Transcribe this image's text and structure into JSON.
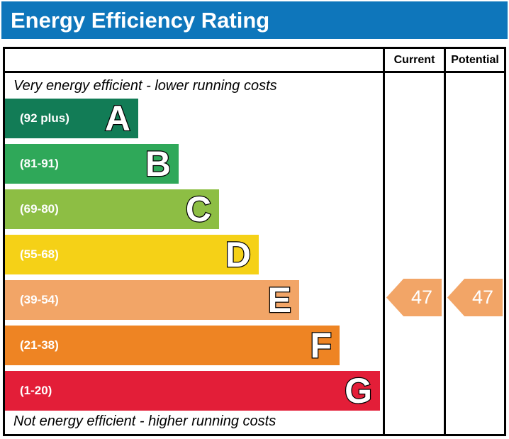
{
  "title": "Energy Efficiency Rating",
  "title_bar_color": "#0e76bb",
  "columns": {
    "current": "Current",
    "potential": "Potential"
  },
  "notes": {
    "top": "Very energy efficient - lower running costs",
    "bottom": "Not energy efficient - higher running costs"
  },
  "bands": [
    {
      "letter": "A",
      "range_label": "(92 plus)",
      "color": "#127c56"
    },
    {
      "letter": "B",
      "range_label": "(81-91)",
      "color": "#2fa859"
    },
    {
      "letter": "C",
      "range_label": "(69-80)",
      "color": "#8dbe44"
    },
    {
      "letter": "D",
      "range_label": "(55-68)",
      "color": "#f5d117"
    },
    {
      "letter": "E",
      "range_label": "(39-54)",
      "color": "#f2a567"
    },
    {
      "letter": "F",
      "range_label": "(21-38)",
      "color": "#ee8423"
    },
    {
      "letter": "G",
      "range_label": "(1-20)",
      "color": "#e31e38"
    }
  ],
  "ratings": {
    "current": {
      "value": "47",
      "band": "E",
      "color": "#f2a567"
    },
    "potential": {
      "value": "47",
      "band": "E",
      "color": "#f2a567"
    }
  },
  "chart_data": {
    "type": "bar",
    "title": "Energy Efficiency Rating",
    "categories": [
      "A",
      "B",
      "C",
      "D",
      "E",
      "F",
      "G"
    ],
    "band_ranges": [
      "92 plus",
      "81-91",
      "69-80",
      "55-68",
      "39-54",
      "21-38",
      "1-20"
    ],
    "band_colors": [
      "#127c56",
      "#2fa859",
      "#8dbe44",
      "#f5d117",
      "#f2a567",
      "#ee8423",
      "#e31e38"
    ],
    "value_scale": [
      1,
      100
    ],
    "series": [
      {
        "name": "Current",
        "values": [
          47
        ],
        "band": "E"
      },
      {
        "name": "Potential",
        "values": [
          47
        ],
        "band": "E"
      }
    ],
    "annotations": [
      "Very energy efficient - lower running costs",
      "Not energy efficient - higher running costs"
    ],
    "legend_position": "none",
    "grid": false
  }
}
